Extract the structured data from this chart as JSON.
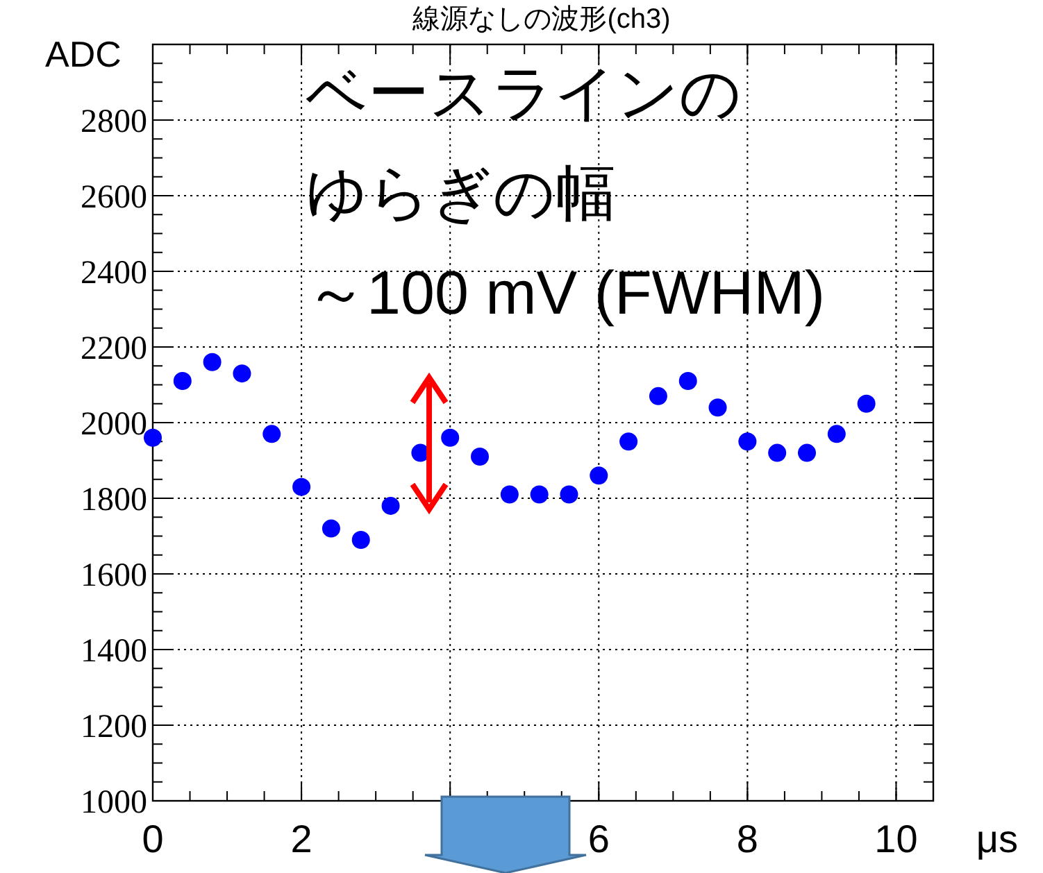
{
  "chart_data": {
    "type": "scatter",
    "title": "線源なしの波形(ch3)",
    "xlabel": "μs",
    "ylabel": "ADC",
    "annotations": [
      "ベースラインの",
      "ゆらぎの幅",
      "～100 mV (FWHM)"
    ],
    "x": [
      0,
      0.4,
      0.8,
      1.2,
      1.6,
      2.0,
      2.4,
      2.8,
      3.2,
      3.6,
      4.0,
      4.4,
      4.8,
      5.2,
      5.6,
      6.0,
      6.4,
      6.8,
      7.2,
      7.6,
      8.0,
      8.4,
      8.8,
      9.2,
      9.6
    ],
    "series": [
      {
        "color": "#0000ff",
        "values": [
          1960,
          2110,
          2160,
          2130,
          1970,
          1830,
          1720,
          1690,
          1780,
          1920,
          1960,
          1910,
          1810,
          1810,
          1810,
          1860,
          1950,
          2070,
          2110,
          2040,
          1950,
          1920,
          1920,
          1970,
          2050
        ]
      }
    ],
    "xlim": [
      0,
      10.5
    ],
    "xticks": [
      0,
      2,
      {
        "value": 4,
        "label": null
      },
      6,
      8,
      10
    ],
    "ylim": [
      1000,
      3000
    ],
    "yticks": [
      1000,
      1200,
      1400,
      1600,
      1800,
      2000,
      2200,
      2400,
      2600,
      2800
    ],
    "grid": true,
    "marker": "circle"
  }
}
